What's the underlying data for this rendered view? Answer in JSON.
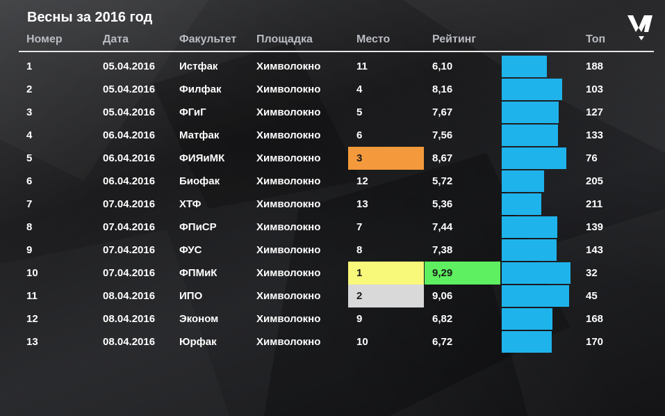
{
  "title": "Весны за 2016 год",
  "columns": {
    "num": "Номер",
    "date": "Дата",
    "faculty": "Факультет",
    "venue": "Площадка",
    "place": "Место",
    "rating": "Рейтинг",
    "top": "Топ"
  },
  "colors": {
    "bar": "#1fb3ec",
    "place_1": "#f8f87a",
    "place_2": "#d9d9d9",
    "place_3": "#f59a3c",
    "best_rating": "#5ef060"
  },
  "rating_max": 10,
  "rows": [
    {
      "num": "1",
      "date": "05.04.2016",
      "faculty": "Истфак",
      "venue": "Химволокно",
      "place": "11",
      "rating": "6,10",
      "top": "188"
    },
    {
      "num": "2",
      "date": "05.04.2016",
      "faculty": "Филфак",
      "venue": "Химволокно",
      "place": "4",
      "rating": "8,16",
      "top": "103"
    },
    {
      "num": "3",
      "date": "05.04.2016",
      "faculty": "ФГиГ",
      "venue": "Химволокно",
      "place": "5",
      "rating": "7,67",
      "top": "127"
    },
    {
      "num": "4",
      "date": "06.04.2016",
      "faculty": "Матфак",
      "venue": "Химволокно",
      "place": "6",
      "rating": "7,56",
      "top": "133"
    },
    {
      "num": "5",
      "date": "06.04.2016",
      "faculty": "ФИЯиМК",
      "venue": "Химволокно",
      "place": "3",
      "rating": "8,67",
      "top": "76"
    },
    {
      "num": "6",
      "date": "06.04.2016",
      "faculty": "Биофак",
      "venue": "Химволокно",
      "place": "12",
      "rating": "5,72",
      "top": "205"
    },
    {
      "num": "7",
      "date": "07.04.2016",
      "faculty": "ХТФ",
      "venue": "Химволокно",
      "place": "13",
      "rating": "5,36",
      "top": "211"
    },
    {
      "num": "8",
      "date": "07.04.2016",
      "faculty": "ФПиСР",
      "venue": "Химволокно",
      "place": "7",
      "rating": "7,44",
      "top": "139"
    },
    {
      "num": "9",
      "date": "07.04.2016",
      "faculty": "ФУС",
      "venue": "Химволокно",
      "place": "8",
      "rating": "7,38",
      "top": "143"
    },
    {
      "num": "10",
      "date": "07.04.2016",
      "faculty": "ФПМиК",
      "venue": "Химволокно",
      "place": "1",
      "rating": "9,29",
      "top": "32"
    },
    {
      "num": "11",
      "date": "08.04.2016",
      "faculty": "ИПО",
      "venue": "Химволокно",
      "place": "2",
      "rating": "9,06",
      "top": "45"
    },
    {
      "num": "12",
      "date": "08.04.2016",
      "faculty": "Эконом",
      "venue": "Химволокно",
      "place": "9",
      "rating": "6,82",
      "top": "168"
    },
    {
      "num": "13",
      "date": "08.04.2016",
      "faculty": "Юрфак",
      "venue": "Химволокно",
      "place": "10",
      "rating": "6,72",
      "top": "170"
    }
  ]
}
